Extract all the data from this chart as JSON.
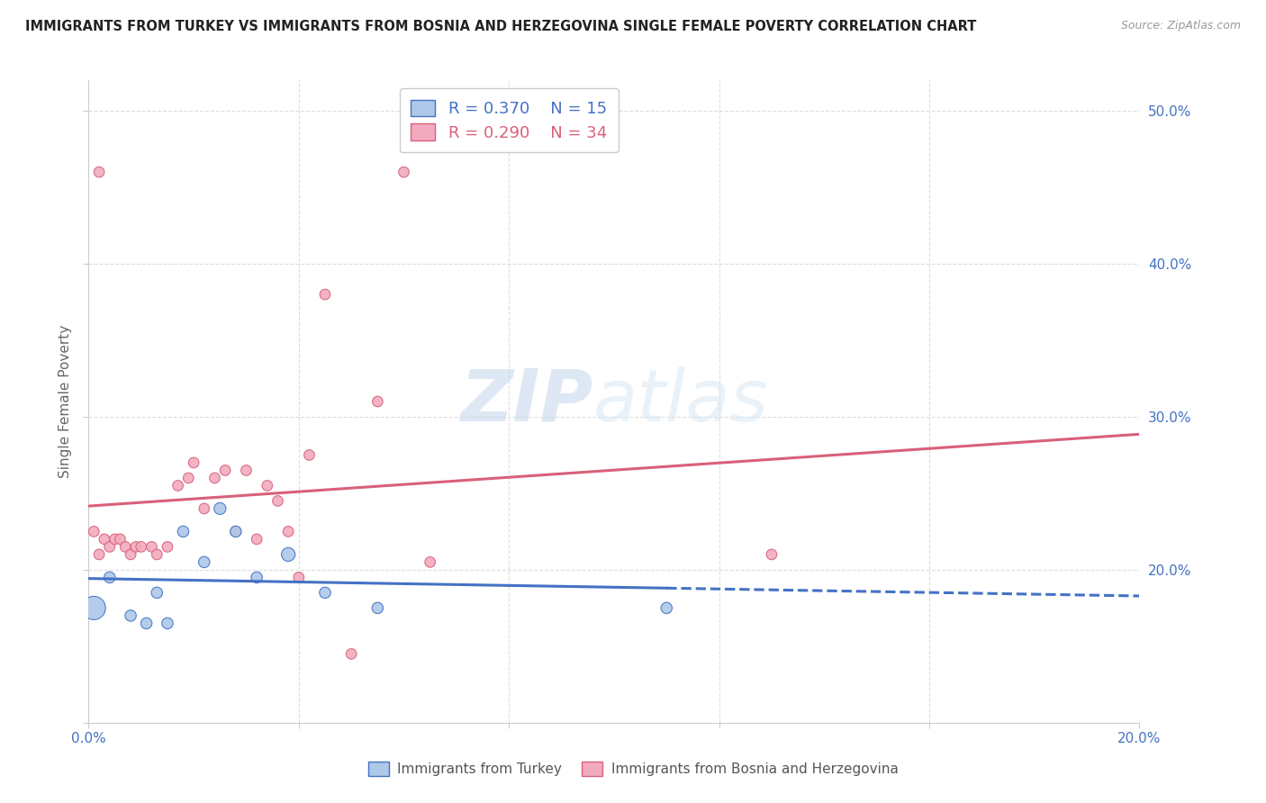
{
  "title": "IMMIGRANTS FROM TURKEY VS IMMIGRANTS FROM BOSNIA AND HERZEGOVINA SINGLE FEMALE POVERTY CORRELATION CHART",
  "source": "Source: ZipAtlas.com",
  "ylabel": "Single Female Poverty",
  "xlim": [
    0.0,
    0.2
  ],
  "ylim": [
    0.1,
    0.52
  ],
  "blue_R": 0.37,
  "blue_N": 15,
  "pink_R": 0.29,
  "pink_N": 34,
  "blue_color": "#adc8e8",
  "pink_color": "#f2abbe",
  "blue_line_color": "#4472c4",
  "pink_line_color": "#d9607a",
  "watermark_zip": "ZIP",
  "watermark_atlas": "atlas",
  "legend_label_blue": "Immigrants from Turkey",
  "legend_label_pink": "Immigrants from Bosnia and Herzegovina",
  "blue_x": [
    0.001,
    0.004,
    0.008,
    0.011,
    0.013,
    0.015,
    0.018,
    0.022,
    0.025,
    0.028,
    0.032,
    0.038,
    0.045,
    0.055,
    0.11
  ],
  "blue_y": [
    0.175,
    0.195,
    0.17,
    0.165,
    0.185,
    0.165,
    0.225,
    0.205,
    0.24,
    0.225,
    0.195,
    0.21,
    0.185,
    0.175,
    0.175
  ],
  "blue_sizes": [
    350,
    80,
    80,
    80,
    80,
    80,
    80,
    80,
    90,
    80,
    80,
    120,
    80,
    80,
    80
  ],
  "pink_x": [
    0.001,
    0.002,
    0.003,
    0.004,
    0.005,
    0.006,
    0.007,
    0.008,
    0.009,
    0.01,
    0.012,
    0.013,
    0.015,
    0.017,
    0.019,
    0.02,
    0.022,
    0.024,
    0.026,
    0.028,
    0.03,
    0.032,
    0.034,
    0.036,
    0.038,
    0.042,
    0.05,
    0.055,
    0.06,
    0.065,
    0.13,
    0.002,
    0.04,
    0.045
  ],
  "pink_y": [
    0.225,
    0.21,
    0.22,
    0.215,
    0.22,
    0.22,
    0.215,
    0.21,
    0.215,
    0.215,
    0.215,
    0.21,
    0.215,
    0.255,
    0.26,
    0.27,
    0.24,
    0.26,
    0.265,
    0.225,
    0.265,
    0.22,
    0.255,
    0.245,
    0.225,
    0.275,
    0.145,
    0.31,
    0.46,
    0.205,
    0.21,
    0.46,
    0.195,
    0.38
  ],
  "pink_sizes": [
    70,
    70,
    70,
    70,
    70,
    70,
    70,
    70,
    70,
    70,
    70,
    70,
    70,
    70,
    70,
    70,
    70,
    70,
    70,
    70,
    70,
    70,
    70,
    70,
    70,
    70,
    70,
    70,
    70,
    70,
    70,
    70,
    70,
    70
  ],
  "background_color": "#ffffff",
  "grid_color": "#dddddd",
  "title_color": "#222222",
  "axis_color": "#4472c4",
  "blue_line_x_solid_end": 0.11,
  "pink_intercept": 0.215,
  "pink_slope": 0.6,
  "blue_intercept": 0.178,
  "blue_slope": 0.6
}
